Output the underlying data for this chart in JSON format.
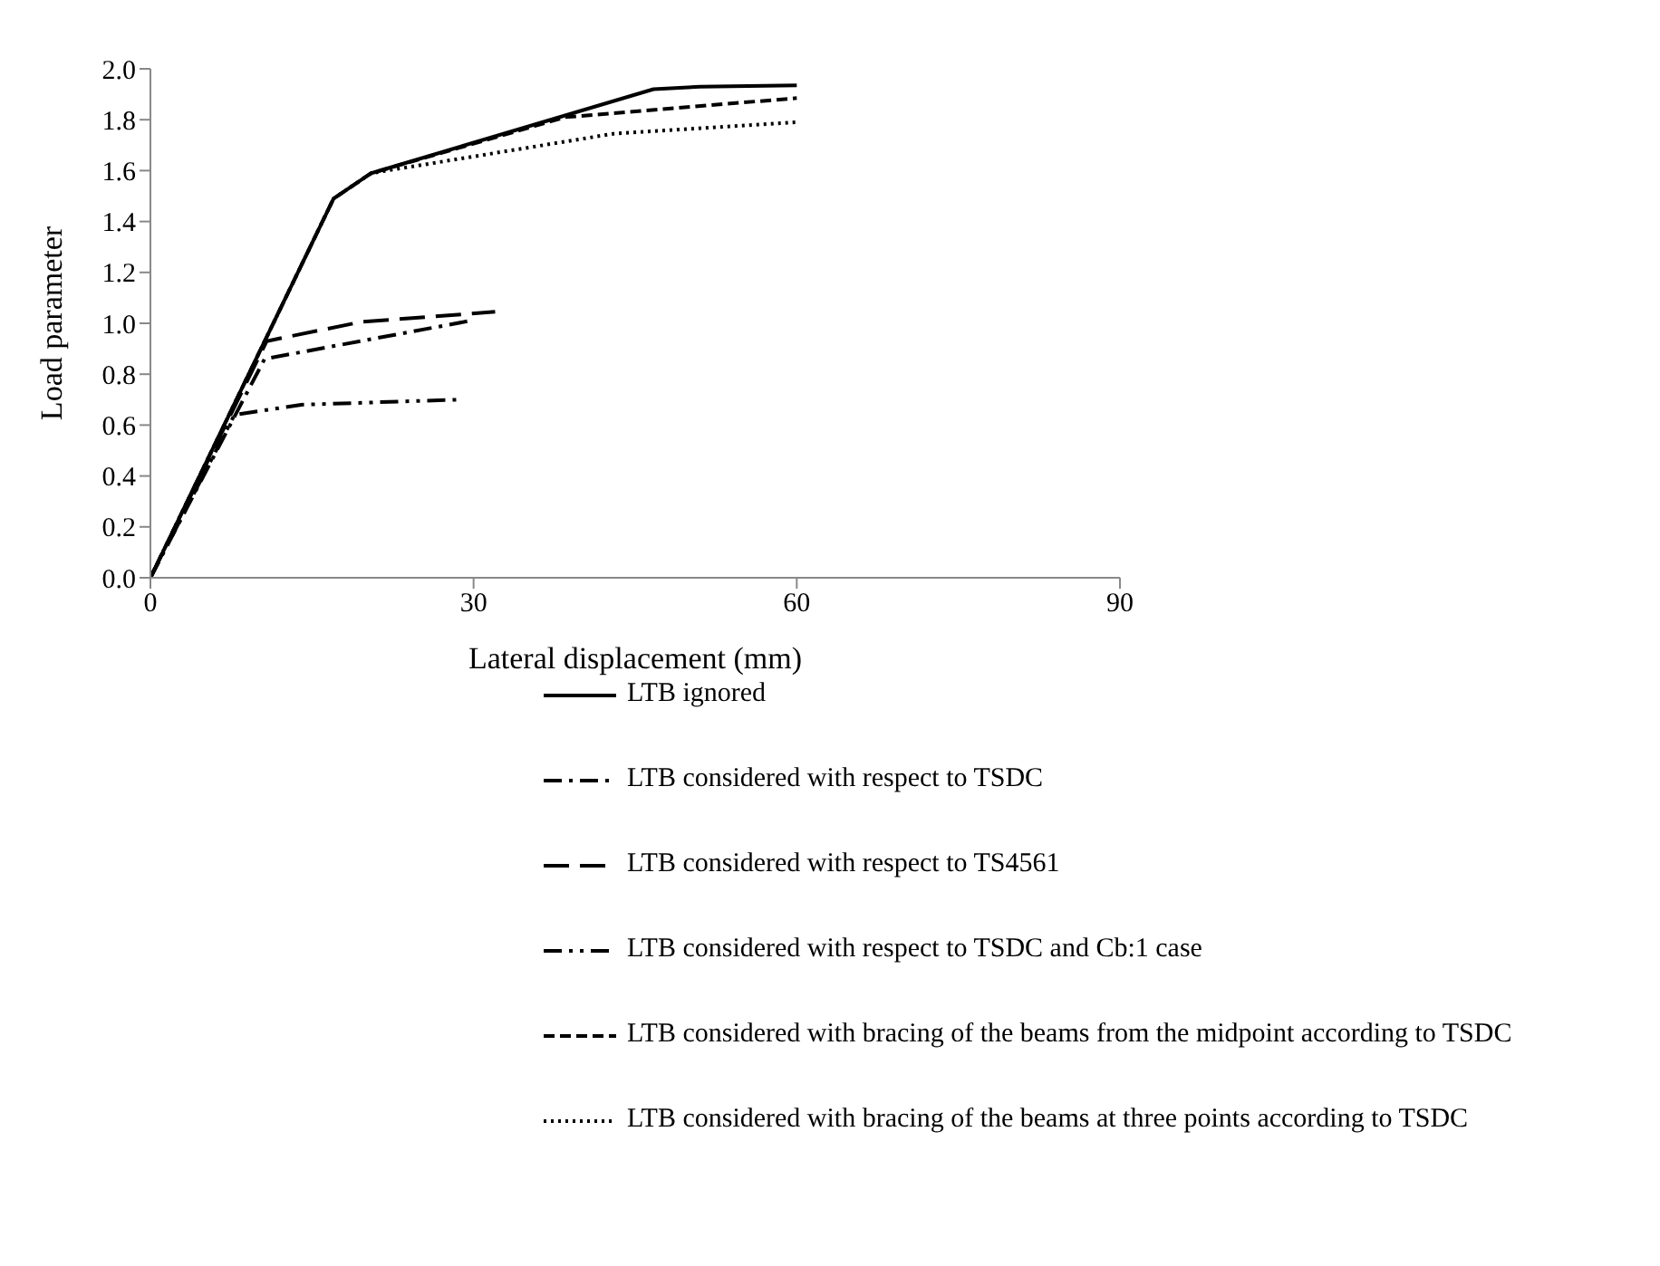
{
  "chart_data": {
    "type": "line",
    "xlabel": "Lateral displacement (mm)",
    "ylabel": "Load parameter",
    "xlim": [
      0,
      90
    ],
    "xticks": [
      0,
      30,
      60,
      90
    ],
    "ylim": [
      0,
      2
    ],
    "yticks": [
      {
        "value": 0,
        "label": "0.0"
      },
      {
        "value": 0.2,
        "label": "0.2"
      },
      {
        "value": 0.4,
        "label": "0.4"
      },
      {
        "value": 0.6,
        "label": "0.6"
      },
      {
        "value": 0.8,
        "label": "0.8"
      },
      {
        "value": 1,
        "label": "1.0"
      },
      {
        "value": 1.2,
        "label": "1.2"
      },
      {
        "value": 1.4,
        "label": "1.4"
      },
      {
        "value": 1.6,
        "label": "1.6"
      },
      {
        "value": 1.8,
        "label": "1.8"
      },
      {
        "value": 2,
        "label": "2.0"
      }
    ],
    "grid": false,
    "legend": "bottom right",
    "marker": "none",
    "series": [
      {
        "name": "LTB ignored",
        "color": "#000000",
        "line_style": "solid",
        "x": [
          0,
          17,
          20.5,
          46.7,
          51,
          60
        ],
        "values": [
          0,
          1.49,
          1.59,
          1.92,
          1.93,
          1.935
        ]
      },
      {
        "name": "LTB considered with respect to TSDC",
        "color": "#000000",
        "line_style": "dashdot",
        "x": [
          0,
          10.6,
          29.7
        ],
        "values": [
          0,
          0.86,
          1.01
        ]
      },
      {
        "name": "LTB considered with respect to TS4561",
        "color": "#000000",
        "line_style": "longdash",
        "x": [
          0,
          10.8,
          19.5,
          32
        ],
        "values": [
          0,
          0.93,
          1.005,
          1.045
        ]
      },
      {
        "name": "LTB considered with respect to TSDC and Cb:1 case",
        "color": "#000000",
        "line_style": "dashdotdot",
        "x": [
          0,
          7.8,
          14,
          28.7
        ],
        "values": [
          0,
          0.64,
          0.68,
          0.7
        ]
      },
      {
        "name": "LTB considered with bracing of the beams from the midpoint according to TSDC",
        "color": "#000000",
        "line_style": "dashed",
        "x": [
          0,
          17,
          20.5,
          38.5,
          60
        ],
        "values": [
          0,
          1.49,
          1.59,
          1.81,
          1.885
        ]
      },
      {
        "name": "LTB considered with bracing of the beams at three points according to TSDC",
        "color": "#000000",
        "line_style": "dotted",
        "x": [
          0,
          17,
          20.5,
          43,
          60
        ],
        "values": [
          0,
          1.49,
          1.59,
          1.745,
          1.79
        ]
      }
    ]
  }
}
